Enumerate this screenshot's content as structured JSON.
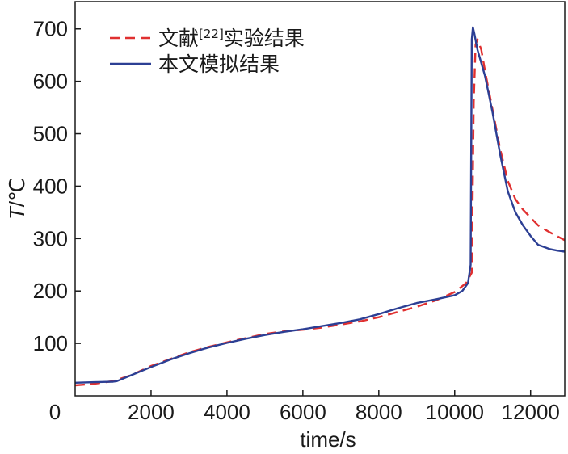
{
  "chart_data": {
    "type": "line",
    "title": "",
    "xlabel": "time/s",
    "ylabel": "T/℃",
    "ylabel_italic_part": "T",
    "ylabel_rest": "/℃",
    "xlim": [
      0,
      12900
    ],
    "ylim": [
      0,
      752
    ],
    "x_ticks": [
      {
        "value": 0,
        "label": "0"
      },
      {
        "value": 2000,
        "label": "2000"
      },
      {
        "value": 4000,
        "label": "4000"
      },
      {
        "value": 6000,
        "label": "6000"
      },
      {
        "value": 8000,
        "label": "8000"
      },
      {
        "value": 10000,
        "label": "10000"
      },
      {
        "value": 12000,
        "label": "12000"
      }
    ],
    "y_ticks": [
      {
        "value": 100,
        "label": "100"
      },
      {
        "value": 200,
        "label": "200"
      },
      {
        "value": 300,
        "label": "300"
      },
      {
        "value": 400,
        "label": "400"
      },
      {
        "value": 500,
        "label": "500"
      },
      {
        "value": 600,
        "label": "600"
      },
      {
        "value": 700,
        "label": "700"
      }
    ],
    "grid": false,
    "legend_position": "top-left",
    "series": [
      {
        "name": "文献[22]实验结果",
        "name_parts": {
          "before": "文献",
          "superscript": "[22]",
          "after": "实验结果"
        },
        "color": "#e03030",
        "style": "dashed",
        "x": [
          0,
          500,
          1000,
          1500,
          2000,
          2500,
          3000,
          3500,
          4000,
          4500,
          5000,
          5500,
          6000,
          6500,
          7000,
          7500,
          8000,
          8500,
          9000,
          9500,
          10000,
          10300,
          10450,
          10500,
          10550,
          10600,
          10700,
          10800,
          11000,
          11200,
          11400,
          11600,
          11800,
          12000,
          12200,
          12500,
          12900
        ],
        "y": [
          20,
          23,
          28,
          40,
          57,
          70,
          83,
          93,
          102,
          110,
          118,
          123,
          126,
          130,
          136,
          142,
          150,
          160,
          170,
          182,
          198,
          215,
          235,
          560,
          670,
          680,
          660,
          620,
          545,
          470,
          410,
          375,
          355,
          340,
          325,
          312,
          297
        ]
      },
      {
        "name": "本文模拟结果",
        "color": "#2c3f94",
        "style": "solid",
        "x": [
          0,
          500,
          1000,
          1100,
          1500,
          2000,
          2500,
          3000,
          3500,
          4000,
          4500,
          5000,
          5500,
          6000,
          6500,
          7000,
          7500,
          8000,
          8500,
          9000,
          9500,
          10000,
          10200,
          10350,
          10420,
          10450,
          10480,
          10520,
          10600,
          10800,
          11000,
          11200,
          11400,
          11600,
          11800,
          12000,
          12200,
          12500,
          12700,
          12900
        ],
        "y": [
          25,
          26,
          27,
          28,
          40,
          55,
          69,
          81,
          92,
          101,
          109,
          116,
          122,
          127,
          133,
          139,
          146,
          156,
          167,
          177,
          184,
          192,
          200,
          215,
          250,
          680,
          703,
          690,
          660,
          610,
          540,
          460,
          390,
          350,
          325,
          305,
          288,
          280,
          277,
          275
        ]
      }
    ]
  }
}
